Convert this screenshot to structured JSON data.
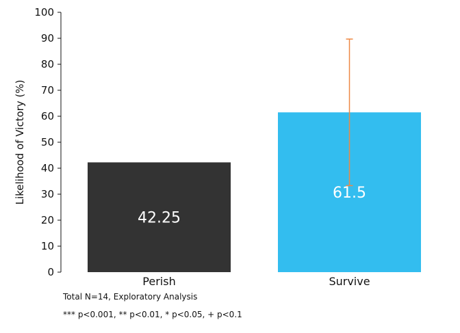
{
  "chart_data": {
    "type": "bar",
    "categories": [
      "Perish",
      "Survive"
    ],
    "values": [
      42.25,
      61.5
    ],
    "value_labels": [
      "42.25",
      "61.5"
    ],
    "error_bars": [
      null,
      {
        "low": 33.3,
        "high": 89.7
      }
    ],
    "colors": [
      "#333333",
      "#33bdef"
    ],
    "error_color": "#ee8844",
    "title": "",
    "xlabel": "",
    "ylabel": "Likelihood of Victory (%)",
    "ylim": [
      0,
      100
    ],
    "yticks": [
      0,
      10,
      20,
      30,
      40,
      50,
      60,
      70,
      80,
      90,
      100
    ],
    "grid": false,
    "notes": [
      "Total N=14, Exploratory Analysis",
      "*** p<0.001, ** p<0.01, * p<0.05, + p<0.1"
    ]
  }
}
